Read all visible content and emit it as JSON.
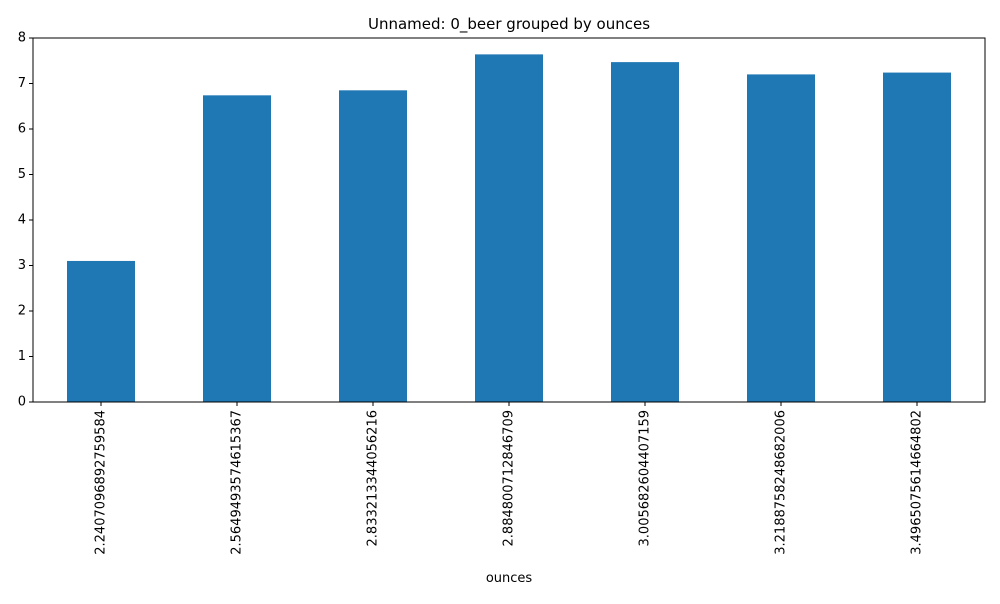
{
  "chart_data": {
    "type": "bar",
    "title": "Unnamed: 0_beer grouped by ounces",
    "xlabel": "ounces",
    "ylabel": "",
    "categories": [
      "2.2407096892759584",
      "2.5649493574615367",
      "2.833213344056216",
      "2.884800712846709",
      "3.005682604407159",
      "3.2188758248682006",
      "3.4965075614664802"
    ],
    "values": [
      3.1,
      6.74,
      6.85,
      7.64,
      7.47,
      7.2,
      7.24
    ],
    "ylim": [
      0,
      8
    ],
    "yticks": [
      0,
      1,
      2,
      3,
      4,
      5,
      6,
      7,
      8
    ],
    "grid": false,
    "legend": "none",
    "bar_color": "#1f77b4"
  }
}
